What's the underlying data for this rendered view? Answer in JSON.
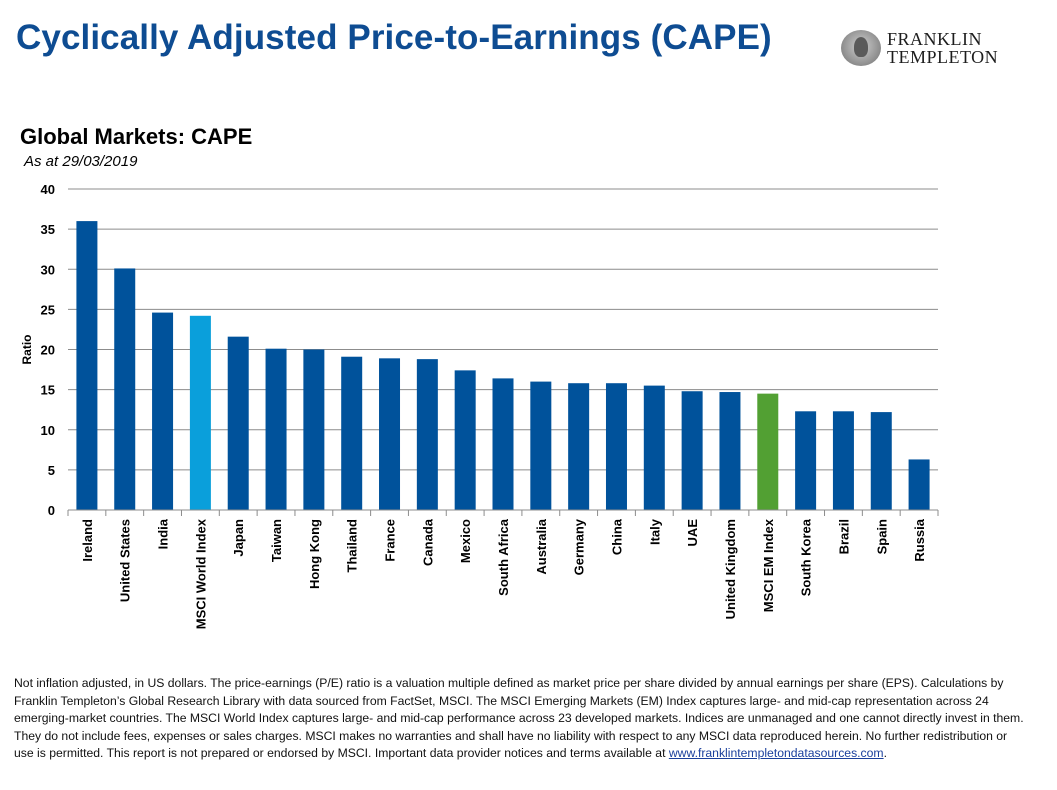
{
  "header": {
    "title": "Cyclically Adjusted Price-to-Earnings (CAPE)",
    "logo_line1": "FRANKLIN",
    "logo_line2": "TEMPLETON"
  },
  "chart_data": {
    "type": "bar",
    "title": "Global Markets: CAPE",
    "subtitle": "As at 29/03/2019",
    "xlabel": "",
    "ylabel": "Ratio",
    "ylim": [
      0,
      40
    ],
    "yticks": [
      0,
      5,
      10,
      15,
      20,
      25,
      30,
      35,
      40
    ],
    "grid": true,
    "categories": [
      "Ireland",
      "United States",
      "India",
      "MSCI World Index",
      "Japan",
      "Taiwan",
      "Hong Kong",
      "Thailand",
      "France",
      "Canada",
      "Mexico",
      "South Africa",
      "Australia",
      "Germany",
      "China",
      "Italy",
      "UAE",
      "United Kingdom",
      "MSCI EM Index",
      "South Korea",
      "Brazil",
      "Spain",
      "Russia"
    ],
    "values": [
      36.0,
      30.1,
      24.6,
      24.2,
      21.6,
      20.1,
      20.0,
      19.1,
      18.9,
      18.8,
      17.4,
      16.4,
      16.0,
      15.8,
      15.8,
      15.5,
      14.8,
      14.7,
      14.5,
      12.3,
      12.3,
      12.2,
      6.3
    ],
    "colors": {
      "default": "#00529b",
      "MSCI World Index": "#0a9fdb",
      "MSCI EM Index": "#52a033"
    }
  },
  "footnote": {
    "text": "Not inflation adjusted, in US dollars. The price-earnings (P/E) ratio is a valuation multiple defined as market price per share divided by annual earnings per share (EPS). Calculations by Franklin Templeton’s Global Research Library with data sourced from FactSet, MSCI. The MSCI Emerging Markets (EM) Index captures large- and mid-cap representation across 24 emerging-market countries. The MSCI World Index captures large- and mid-cap performance across 23 developed markets. Indices are unmanaged and one cannot directly invest in them. They do not include fees, expenses or sales charges. MSCI makes no warranties and shall have no liability with respect to any MSCI data reproduced herein. No further redistribution or use is permitted. This report is not prepared or endorsed by MSCI. Important data provider notices and terms available at ",
    "link": "www.franklintempletondatasources.com",
    "end": "."
  }
}
